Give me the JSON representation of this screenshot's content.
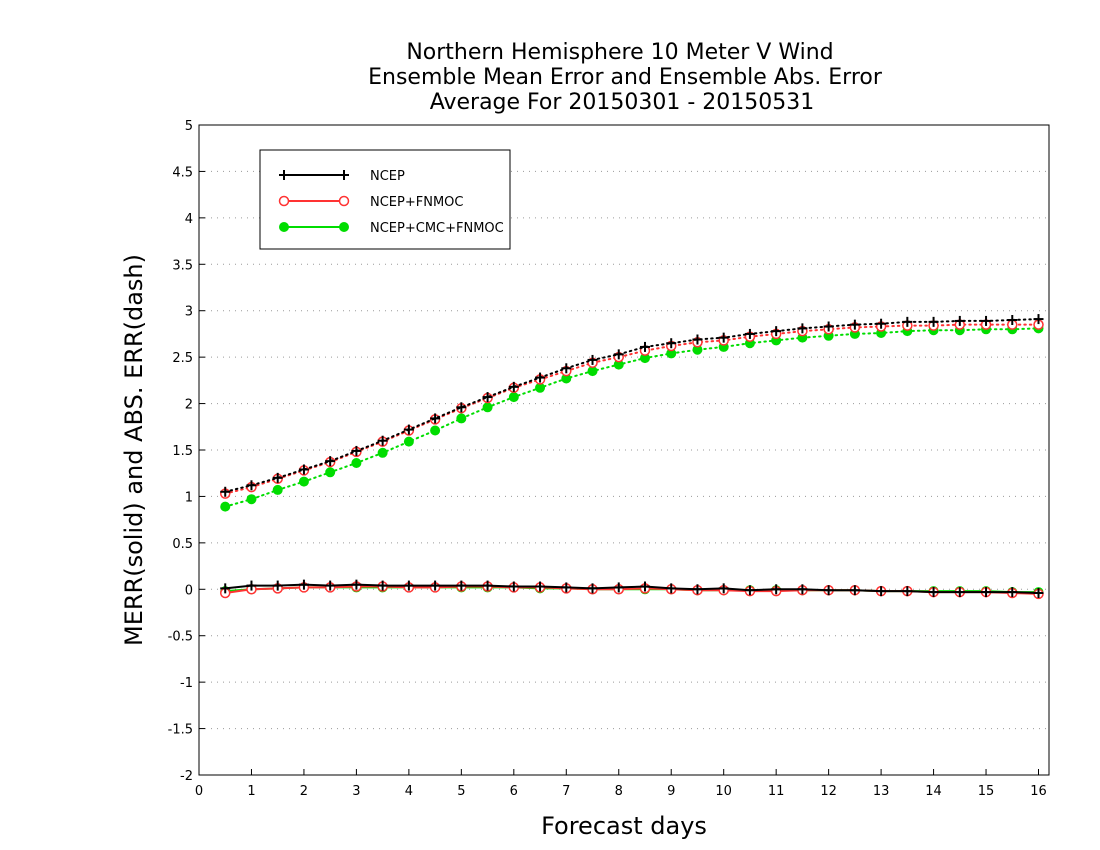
{
  "chart_data": {
    "type": "line",
    "title": [
      "Northern Hemisphere 10 Meter V Wind",
      "Ensemble Mean Error and Ensemble Abs. Error",
      "Average For 20150301 - 20150531"
    ],
    "xlabel": "Forecast days",
    "ylabel": "MERR(solid) and ABS. ERR(dash)",
    "xlim": [
      0,
      16.2
    ],
    "ylim": [
      -2,
      5
    ],
    "xticks": [
      "0",
      "1",
      "2",
      "3",
      "4",
      "5",
      "6",
      "7",
      "8",
      "9",
      "10",
      "11",
      "12",
      "13",
      "14",
      "15",
      "16"
    ],
    "yticks": [
      "-2",
      "-1.5",
      "-1",
      "-0.5",
      "0",
      "0.5",
      "1",
      "1.5",
      "2",
      "2.5",
      "3",
      "3.5",
      "4",
      "4.5",
      "5"
    ],
    "grid": "horizontal dotted",
    "legend_position": "top-left",
    "x": [
      0.5,
      1,
      1.5,
      2,
      2.5,
      3,
      3.5,
      4,
      4.5,
      5,
      5.5,
      6,
      6.5,
      7,
      7.5,
      8,
      8.5,
      9,
      9.5,
      10,
      10.5,
      11,
      11.5,
      12,
      12.5,
      13,
      13.5,
      14,
      14.5,
      15,
      15.5,
      16
    ],
    "series": [
      {
        "name": "NCEP",
        "color": "#000000",
        "marker": "plus",
        "merr": [
          0.01,
          0.04,
          0.04,
          0.05,
          0.04,
          0.05,
          0.04,
          0.04,
          0.04,
          0.04,
          0.04,
          0.03,
          0.03,
          0.02,
          0.01,
          0.02,
          0.03,
          0.01,
          0.0,
          0.01,
          -0.01,
          0.0,
          0.0,
          -0.01,
          -0.01,
          -0.02,
          -0.02,
          -0.03,
          -0.03,
          -0.03,
          -0.03,
          -0.04
        ],
        "abs": [
          1.05,
          1.12,
          1.2,
          1.29,
          1.38,
          1.49,
          1.6,
          1.72,
          1.84,
          1.96,
          2.07,
          2.18,
          2.28,
          2.38,
          2.47,
          2.53,
          2.61,
          2.65,
          2.69,
          2.71,
          2.75,
          2.78,
          2.81,
          2.83,
          2.85,
          2.86,
          2.88,
          2.88,
          2.89,
          2.89,
          2.9,
          2.91
        ]
      },
      {
        "name": "NCEP+FNMOC",
        "color": "#ff3333",
        "marker": "open-circle",
        "merr": [
          -0.04,
          0.0,
          0.01,
          0.02,
          0.02,
          0.03,
          0.03,
          0.02,
          0.02,
          0.03,
          0.03,
          0.02,
          0.02,
          0.01,
          0.0,
          0.0,
          0.01,
          0.0,
          -0.01,
          -0.01,
          -0.02,
          -0.02,
          -0.01,
          -0.01,
          -0.01,
          -0.02,
          -0.02,
          -0.03,
          -0.03,
          -0.03,
          -0.04,
          -0.05
        ],
        "abs": [
          1.03,
          1.1,
          1.19,
          1.28,
          1.37,
          1.48,
          1.59,
          1.71,
          1.83,
          1.95,
          2.06,
          2.17,
          2.26,
          2.35,
          2.44,
          2.5,
          2.57,
          2.62,
          2.66,
          2.68,
          2.72,
          2.75,
          2.78,
          2.8,
          2.82,
          2.83,
          2.84,
          2.84,
          2.85,
          2.85,
          2.85,
          2.85
        ]
      },
      {
        "name": "NCEP+CMC+FNMOC",
        "color": "#00dd00",
        "marker": "filled-circle",
        "merr": [
          -0.02,
          0.0,
          0.01,
          0.02,
          0.02,
          0.02,
          0.02,
          0.02,
          0.02,
          0.02,
          0.02,
          0.02,
          0.01,
          0.01,
          0.0,
          0.0,
          0.0,
          0.0,
          -0.01,
          -0.01,
          -0.01,
          -0.01,
          -0.01,
          -0.01,
          -0.01,
          -0.02,
          -0.02,
          -0.02,
          -0.02,
          -0.02,
          -0.03,
          -0.03
        ],
        "abs": [
          0.89,
          0.97,
          1.07,
          1.16,
          1.26,
          1.36,
          1.47,
          1.59,
          1.71,
          1.84,
          1.96,
          2.07,
          2.17,
          2.27,
          2.35,
          2.42,
          2.49,
          2.54,
          2.58,
          2.61,
          2.65,
          2.68,
          2.71,
          2.73,
          2.75,
          2.76,
          2.78,
          2.79,
          2.79,
          2.8,
          2.8,
          2.81
        ]
      }
    ]
  }
}
